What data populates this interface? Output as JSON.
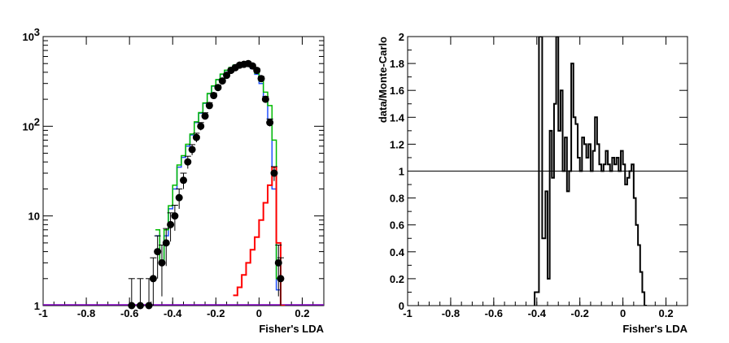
{
  "chart_data": [
    {
      "type": "histogram",
      "xlabel": "Fisher's LDA",
      "ylabel": "",
      "xlim": [
        -1,
        0.3
      ],
      "ylim": [
        1,
        1000
      ],
      "log_y": true,
      "x_ticks": [
        "-1",
        "-0.8",
        "-0.6",
        "-0.4",
        "-0.2",
        "0",
        "0.2"
      ],
      "x_tick_values": [
        -1,
        -0.8,
        -0.6,
        -0.4,
        -0.2,
        0,
        0.2
      ],
      "y_ticks": [
        {
          "value": 1,
          "base": "1",
          "exp": ""
        },
        {
          "value": 10,
          "base": "10",
          "exp": ""
        },
        {
          "value": 100,
          "base": "10",
          "exp": "2"
        },
        {
          "value": 1000,
          "base": "10",
          "exp": "3"
        }
      ],
      "series": [
        {
          "color": "#2050ff",
          "style": "step",
          "x": [
            -0.47,
            -0.45,
            -0.43,
            -0.41,
            -0.39,
            -0.37,
            -0.35,
            -0.33,
            -0.31,
            -0.29,
            -0.27,
            -0.25,
            -0.23,
            -0.21,
            -0.19,
            -0.17,
            -0.15,
            -0.13,
            -0.11,
            -0.09,
            -0.07,
            -0.05,
            -0.03,
            -0.01,
            0.01,
            0.03,
            0.05,
            0.07,
            0.09,
            0.11
          ],
          "y": [
            6,
            3,
            6,
            12,
            20,
            35,
            45,
            60,
            80,
            110,
            140,
            180,
            230,
            280,
            330,
            380,
            420,
            450,
            480,
            490,
            500,
            480,
            440,
            380,
            300,
            200,
            120,
            20,
            1.5,
            1
          ]
        },
        {
          "color": "#00bb00",
          "style": "step",
          "x": [
            -0.47,
            -0.45,
            -0.43,
            -0.41,
            -0.39,
            -0.37,
            -0.35,
            -0.33,
            -0.31,
            -0.29,
            -0.27,
            -0.25,
            -0.23,
            -0.21,
            -0.19,
            -0.17,
            -0.15,
            -0.13,
            -0.11,
            -0.09,
            -0.07,
            -0.05,
            -0.03,
            -0.01,
            0.01,
            0.03,
            0.05,
            0.07,
            0.09,
            0.11
          ],
          "y": [
            7,
            3,
            7,
            13,
            22,
            37,
            47,
            63,
            82,
            112,
            142,
            182,
            232,
            282,
            332,
            382,
            422,
            452,
            482,
            492,
            502,
            482,
            445,
            390,
            320,
            240,
            170,
            70,
            2,
            1
          ]
        },
        {
          "color": "#ff0000",
          "style": "step",
          "x": [
            -0.11,
            -0.09,
            -0.07,
            -0.05,
            -0.03,
            -0.01,
            0.01,
            0.03,
            0.05,
            0.07,
            0.09,
            0.11
          ],
          "y": [
            1.3,
            1.6,
            2.2,
            3,
            4.2,
            5.8,
            9,
            14,
            22,
            35,
            5,
            1
          ]
        },
        {
          "color": "#000000",
          "style": "points",
          "x": [
            -0.59,
            -0.55,
            -0.51,
            -0.49,
            -0.47,
            -0.45,
            -0.43,
            -0.41,
            -0.39,
            -0.37,
            -0.35,
            -0.33,
            -0.31,
            -0.29,
            -0.27,
            -0.25,
            -0.23,
            -0.21,
            -0.19,
            -0.17,
            -0.15,
            -0.13,
            -0.11,
            -0.09,
            -0.07,
            -0.05,
            -0.03,
            -0.01,
            0.01,
            0.03,
            0.05,
            0.07,
            0.09,
            0.1
          ],
          "y": [
            1,
            1,
            1,
            2,
            4,
            3,
            5,
            8,
            10,
            16,
            25,
            40,
            55,
            75,
            100,
            130,
            170,
            220,
            270,
            320,
            370,
            420,
            450,
            480,
            490,
            500,
            470,
            420,
            340,
            200,
            110,
            30,
            3,
            2
          ]
        }
      ]
    },
    {
      "type": "line",
      "xlabel": "Fisher's LDA",
      "ylabel": "data/Monte-Carlo",
      "xlim": [
        -1,
        0.3
      ],
      "ylim": [
        0,
        2
      ],
      "x_ticks": [
        "-1",
        "-0.8",
        "-0.6",
        "-0.4",
        "-0.2",
        "0",
        "0.2"
      ],
      "x_tick_values": [
        -1,
        -0.8,
        -0.6,
        -0.4,
        -0.2,
        0,
        0.2
      ],
      "y_ticks": [
        "0",
        "0.2",
        "0.4",
        "0.6",
        "0.8",
        "1",
        "1.2",
        "1.4",
        "1.6",
        "1.8",
        "2"
      ],
      "y_tick_values": [
        0,
        0.2,
        0.4,
        0.6,
        0.8,
        1,
        1.2,
        1.4,
        1.6,
        1.8,
        2
      ],
      "reference_y": 1,
      "series": [
        {
          "color": "#000000",
          "style": "step",
          "x": [
            -0.41,
            -0.39,
            -0.375,
            -0.36,
            -0.35,
            -0.34,
            -0.33,
            -0.32,
            -0.31,
            -0.3,
            -0.29,
            -0.28,
            -0.27,
            -0.26,
            -0.25,
            -0.24,
            -0.23,
            -0.22,
            -0.21,
            -0.2,
            -0.19,
            -0.18,
            -0.17,
            -0.16,
            -0.15,
            -0.14,
            -0.13,
            -0.12,
            -0.11,
            -0.1,
            -0.09,
            -0.08,
            -0.07,
            -0.06,
            -0.05,
            -0.04,
            -0.03,
            -0.02,
            -0.01,
            0,
            0.01,
            0.02,
            0.03,
            0.04,
            0.05,
            0.06,
            0.07,
            0.08,
            0.09,
            0.1
          ],
          "y": [
            0.1,
            2.0,
            0.5,
            0.85,
            0.2,
            1.3,
            0.95,
            1.5,
            2.0,
            1.3,
            1.6,
            1.0,
            1.25,
            0.85,
            1.0,
            1.8,
            1.4,
            1.35,
            1.1,
            1.0,
            1.25,
            1.2,
            1.1,
            1.2,
            1.0,
            1.15,
            1.4,
            1.2,
            1.05,
            1.0,
            1.05,
            1.15,
            1.05,
            1.0,
            1.1,
            1.05,
            1.1,
            1.0,
            1.15,
            1.05,
            0.9,
            0.95,
            1.0,
            1.05,
            0.8,
            0.6,
            0.45,
            0.25,
            0.1,
            0.0
          ]
        }
      ]
    }
  ]
}
